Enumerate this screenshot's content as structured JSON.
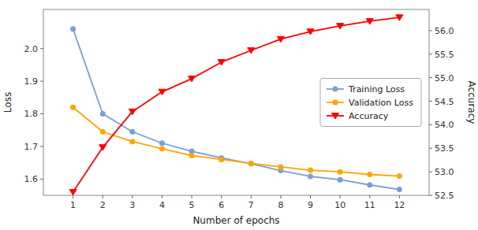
{
  "chart_data": {
    "type": "line",
    "x_label": "Number of epochs",
    "y_label": "Loss",
    "y2_label": "Accuracy",
    "x": [
      1,
      2,
      3,
      4,
      5,
      6,
      7,
      8,
      9,
      10,
      11,
      12
    ],
    "series": [
      {
        "name": "Training Loss",
        "color": "#7b9fd4",
        "marker": "circle",
        "values": [
          2.06,
          1.8,
          1.745,
          1.71,
          1.685,
          1.665,
          1.647,
          1.626,
          1.608,
          1.598,
          1.582,
          1.568
        ]
      },
      {
        "name": "Validation Loss",
        "color": "#ffa500",
        "marker": "circle",
        "values": [
          1.82,
          1.745,
          1.715,
          1.693,
          1.672,
          1.66,
          1.648,
          1.637,
          1.627,
          1.622,
          1.614,
          1.609
        ]
      },
      {
        "name": "Accuracy",
        "color": "#ff0000",
        "marker": "triangle-down",
        "axis": "y2",
        "values": [
          52.57,
          53.52,
          54.28,
          54.7,
          54.98,
          55.33,
          55.58,
          55.82,
          55.98,
          56.1,
          56.2,
          56.28
        ]
      }
    ],
    "xlim": [
      0,
      13
    ],
    "xticks": [
      1,
      2,
      3,
      4,
      5,
      6,
      7,
      8,
      9,
      10,
      11,
      12
    ],
    "ylim": [
      1.55,
      2.12
    ],
    "yticks": [
      1.6,
      1.7,
      1.8,
      1.9,
      {
        "value": 2,
        "label": "2.0"
      }
    ],
    "y2lim": [
      52.5,
      56.45
    ],
    "y2ticks": [
      52.5,
      {
        "value": 53,
        "label": "53.0"
      },
      53.5,
      {
        "value": 54,
        "label": "54.0"
      },
      54.5,
      {
        "value": 55,
        "label": "55.0"
      },
      55.5,
      {
        "value": 56,
        "label": "56.0"
      }
    ],
    "grid": false,
    "legend": "right"
  }
}
